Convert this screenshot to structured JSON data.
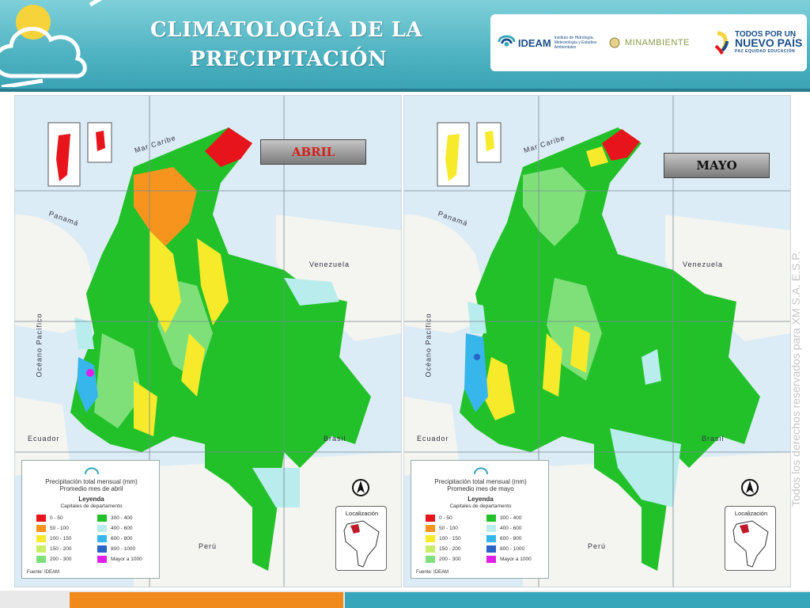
{
  "header": {
    "title_line1": "CLIMATOLOGÍA DE LA",
    "title_line2": "PRECIPITACIÓN",
    "logos": {
      "ideam": "IDEAM",
      "ideam_sub": "Instituto de Hidrología, Meteorología y Estudios Ambientales",
      "minambiente": "MINAMBIENTE",
      "pais_top": "TODOS POR UN",
      "pais_big": "NUEVO PAÍS",
      "pais_sub": "PAZ  EQUIDAD  EDUCACIÓN"
    }
  },
  "maps": [
    {
      "month_label": "ABRIL",
      "legend": {
        "title": "Precipitación total mensual (mm)",
        "subtitle": "Promedio mes de abril",
        "heading": "Leyenda",
        "capitals": "Capitales de departamento",
        "source": "Fuente: IDEAM"
      }
    },
    {
      "month_label": "MAYO",
      "legend": {
        "title": "Precipitación total mensual (mm)",
        "subtitle": "Promedio mes de mayo",
        "heading": "Leyenda",
        "capitals": "Capitales de departamento",
        "source": "Fuente: IDEAM"
      }
    }
  ],
  "legend_classes": [
    {
      "label": "0 - 50",
      "color": "#e8141b"
    },
    {
      "label": "300 - 400",
      "color": "#22c12a"
    },
    {
      "label": "50 - 100",
      "color": "#f7941d"
    },
    {
      "label": "400 - 600",
      "color": "#b9ecec"
    },
    {
      "label": "100 - 150",
      "color": "#f6ea2b"
    },
    {
      "label": "600 - 800",
      "color": "#36b6ea"
    },
    {
      "label": "150 - 200",
      "color": "#c9ef6a"
    },
    {
      "label": "800 - 1000",
      "color": "#2a62c8"
    },
    {
      "label": "200 - 300",
      "color": "#7fe07a"
    },
    {
      "label": "Mayor a 1000",
      "color": "#e020e8"
    }
  ],
  "map_labels": {
    "mar_caribe": "Mar Caribe",
    "panama": "Panamá",
    "venezuela": "Venezuela",
    "oceano": "Océano Pacífico",
    "ecuador": "Ecuador",
    "brasil": "Brasil",
    "peru": "Perú",
    "localizacion": "Localización"
  },
  "copyright": "Todos los derechos reservados para XM S.A. E.S.P.",
  "colors": {
    "header": "#4fb3c2",
    "accent_orange": "#f08a1c",
    "accent_teal": "#37a6bb"
  }
}
